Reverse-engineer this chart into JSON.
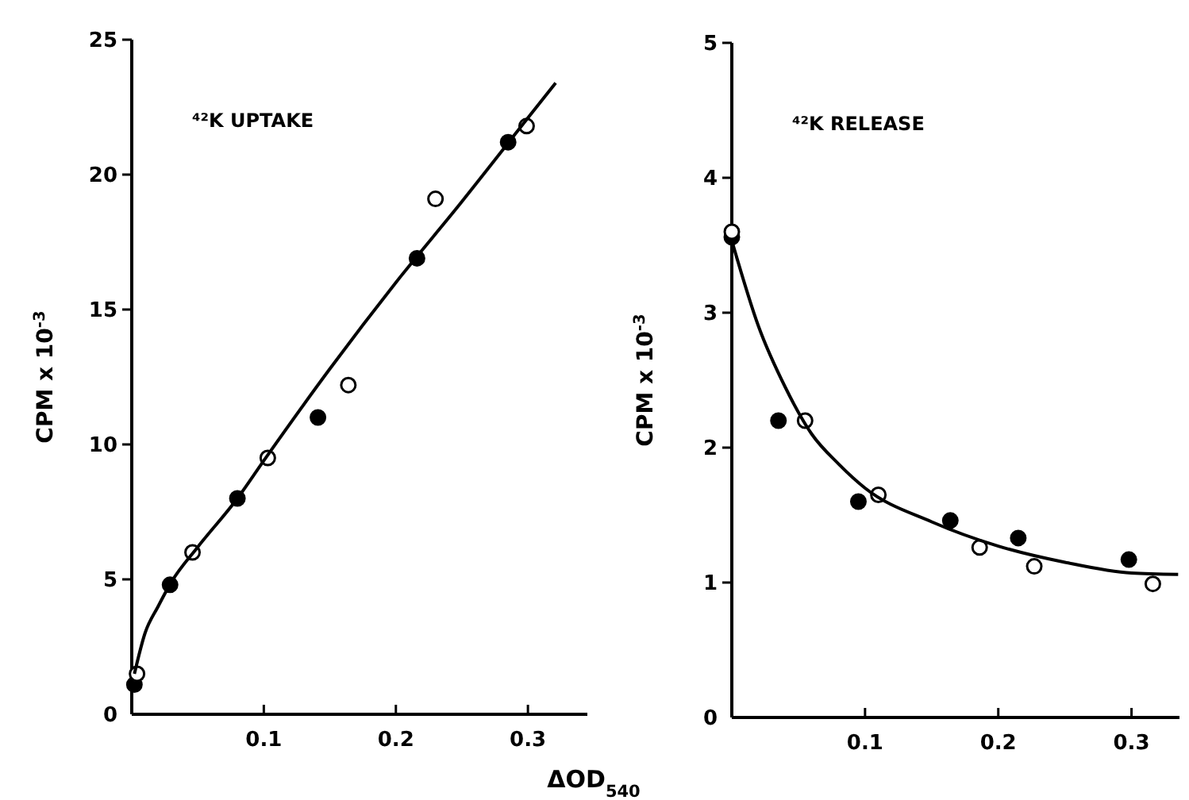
{
  "chart_data": [
    {
      "type": "scatter",
      "title": "⁴²K UPTAKE",
      "xlabel": "ΔOD$_{540}$",
      "ylabel": "CPM x 10$^{-3}$",
      "xlim": [
        0,
        0.345
      ],
      "ylim": [
        0,
        25
      ],
      "xticks": [
        0.1,
        0.2,
        0.3
      ],
      "yticks": [
        {
          "value": 0,
          "label": "0"
        },
        5,
        10,
        15,
        20,
        25
      ],
      "grid": false,
      "marker": "circle",
      "series": [
        {
          "color": "#000000",
          "x": [
            0.002,
            0.029,
            0.08,
            0.141,
            0.216,
            0.285
          ],
          "values": [
            1.1,
            4.8,
            8.0,
            11.0,
            16.9,
            21.2
          ]
        },
        {
          "color": "#ffffff",
          "x": [
            0.004,
            0.046,
            0.103,
            0.164,
            0.23,
            0.299
          ],
          "values": [
            1.5,
            6.0,
            9.5,
            12.2,
            19.1,
            21.8
          ]
        },
        {
          "type": "line",
          "color": "#000000",
          "marker": "none",
          "line_style": "solid",
          "x": [
            0.002,
            0.01,
            0.02,
            0.03,
            0.05,
            0.08,
            0.1,
            0.15,
            0.2,
            0.25,
            0.3,
            0.321
          ],
          "values": [
            1.5,
            3.0,
            4.0,
            4.9,
            6.2,
            8.0,
            9.4,
            12.8,
            16.0,
            19.0,
            22.1,
            23.4
          ]
        }
      ]
    },
    {
      "type": "scatter",
      "title": "⁴²K RELEASE",
      "ylabel": "CPM x 10$^{-3}$",
      "xlim": [
        0,
        0.336
      ],
      "ylim": [
        0,
        5
      ],
      "xticks": [
        0.1,
        0.2,
        0.3
      ],
      "yticks": [
        {
          "value": 0,
          "label": "0"
        },
        1,
        2,
        3,
        4,
        5
      ],
      "grid": false,
      "marker": "circle",
      "series": [
        {
          "color": "#000000",
          "x": [
            0.0,
            0.035,
            0.095,
            0.164,
            0.215,
            0.298
          ],
          "values": [
            3.56,
            2.2,
            1.6,
            1.46,
            1.33,
            1.17
          ]
        },
        {
          "color": "#ffffff",
          "x": [
            0.0,
            0.055,
            0.11,
            0.186,
            0.227,
            0.316
          ],
          "values": [
            3.6,
            2.2,
            1.65,
            1.26,
            1.12,
            0.99
          ]
        },
        {
          "type": "line",
          "color": "#000000",
          "marker": "none",
          "line_style": "solid",
          "x": [
            0.001,
            0.02,
            0.04,
            0.06,
            0.08,
            0.1,
            0.15,
            0.2,
            0.25,
            0.3,
            0.335
          ],
          "values": [
            3.5,
            2.9,
            2.45,
            2.1,
            1.88,
            1.7,
            1.45,
            1.27,
            1.15,
            1.07,
            1.06
          ]
        }
      ]
    }
  ]
}
